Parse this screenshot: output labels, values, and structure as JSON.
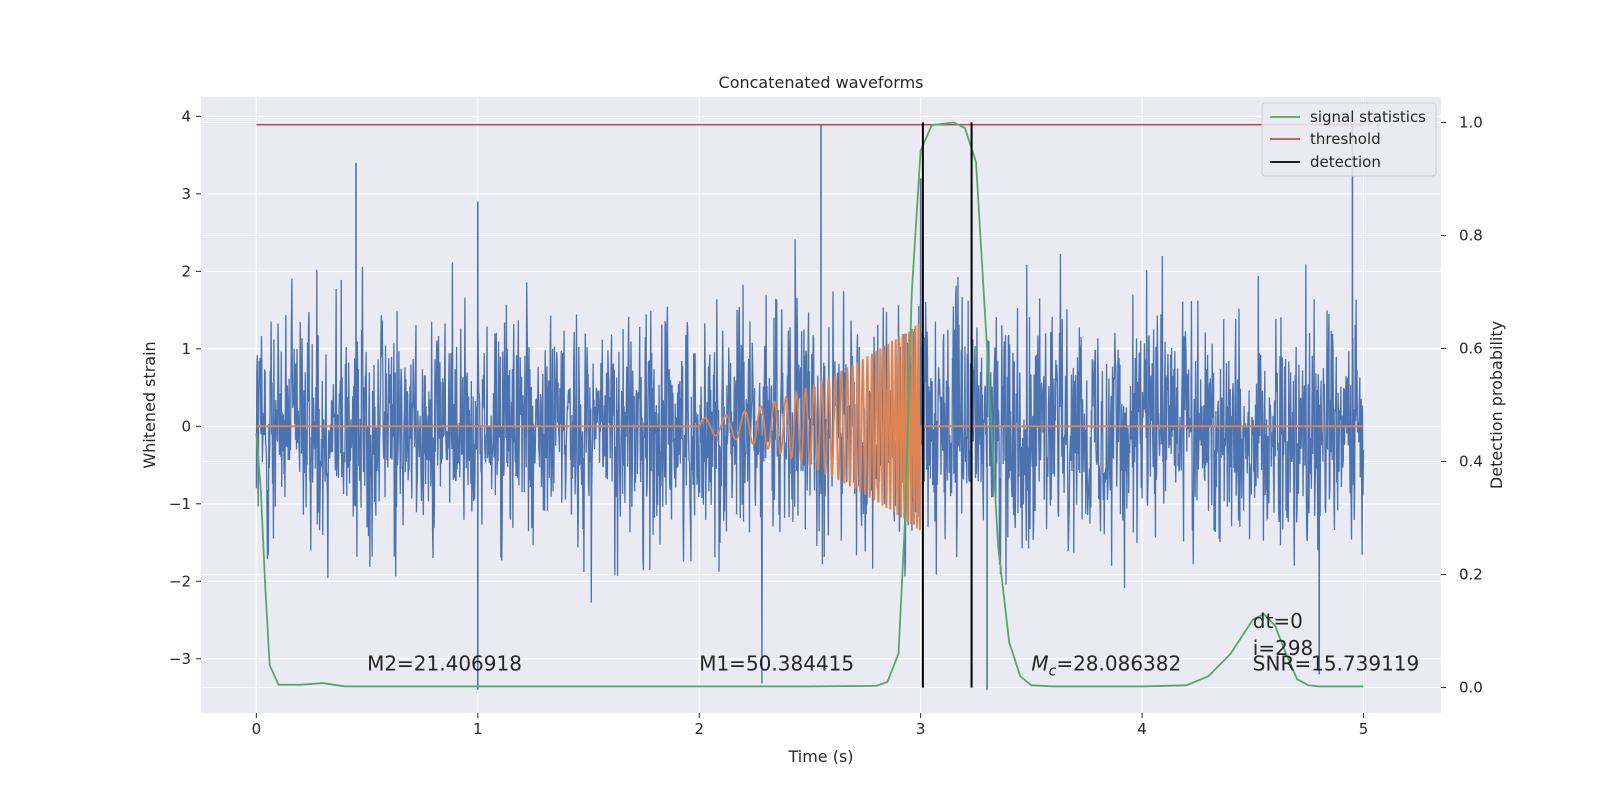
{
  "chart_data": {
    "type": "line",
    "title": "Concatenated waveforms",
    "xlabel": "Time (s)",
    "ylabel": "Whitened strain",
    "y2label": "Detection probability",
    "xlim": [
      -0.25,
      5.35
    ],
    "ylim": [
      -3.7,
      4.25
    ],
    "y2lim": [
      -0.045,
      1.045
    ],
    "xticks": [
      0,
      1,
      2,
      3,
      4,
      5
    ],
    "xtick_labels": [
      "0",
      "1",
      "2",
      "3",
      "4",
      "5"
    ],
    "yticks": [
      -3,
      -2,
      -1,
      0,
      1,
      2,
      3,
      4
    ],
    "ytick_labels": [
      "−3",
      "−2",
      "−1",
      "0",
      "1",
      "2",
      "3",
      "4"
    ],
    "y2ticks": [
      0.0,
      0.2,
      0.4,
      0.6,
      0.8,
      1.0
    ],
    "y2tick_labels": [
      "0.0",
      "0.2",
      "0.4",
      "0.6",
      "0.8",
      "1.0"
    ],
    "grid": true,
    "legend_placement": "top-right",
    "legend": [
      {
        "label": "signal statistics",
        "color": "#55a868"
      },
      {
        "label": "threshold",
        "color": "#c44e52"
      },
      {
        "label": "detection",
        "color": "#000000"
      }
    ],
    "colors": {
      "strain": "#4c72b0",
      "injection": "#dd8452",
      "signal_statistics": "#55a868",
      "threshold": "#c44e52",
      "detection": "#000000",
      "axes_bg": "#eaeaf2"
    },
    "strain": {
      "x_range": [
        0,
        5
      ],
      "typical_range": [
        -2.5,
        2.5
      ],
      "peaks": [
        {
          "x": 0.45,
          "y": 3.4
        },
        {
          "x": 1.0,
          "y": 2.9
        },
        {
          "x": 2.55,
          "y": 3.9
        },
        {
          "x": 3.0,
          "y": 3.2
        },
        {
          "x": 4.95,
          "y": 3.9
        },
        {
          "x": 1.0,
          "y": -3.4
        },
        {
          "x": 3.3,
          "y": -3.4
        },
        {
          "x": 4.8,
          "y": -3.2
        }
      ]
    },
    "injection": {
      "x_start": 2.0,
      "x_end": 3.0,
      "amplitude_start": 0.1,
      "amplitude_end": 1.35,
      "baseline": 0
    },
    "threshold": {
      "value": 0.996,
      "x_range": [
        0,
        5
      ]
    },
    "signal_statistics": {
      "x": [
        0,
        0.02,
        0.04,
        0.06,
        0.1,
        0.2,
        0.3,
        0.4,
        1.0,
        2.0,
        2.5,
        2.8,
        2.85,
        2.9,
        2.93,
        2.96,
        3.0,
        3.05,
        3.15,
        3.2,
        3.25,
        3.3,
        3.35,
        3.4,
        3.45,
        3.5,
        3.6,
        4.0,
        4.2,
        4.3,
        4.4,
        4.45,
        4.5,
        4.55,
        4.6,
        4.65,
        4.7,
        4.75,
        4.8,
        5.0
      ],
      "y": [
        0.45,
        0.35,
        0.18,
        0.04,
        0.005,
        0.005,
        0.008,
        0.002,
        0.002,
        0.002,
        0.002,
        0.003,
        0.01,
        0.06,
        0.3,
        0.7,
        0.95,
        0.995,
        1.0,
        0.99,
        0.93,
        0.6,
        0.25,
        0.08,
        0.02,
        0.004,
        0.002,
        0.002,
        0.004,
        0.02,
        0.06,
        0.09,
        0.12,
        0.13,
        0.11,
        0.06,
        0.015,
        0.004,
        0.002,
        0.002
      ]
    },
    "detections": [
      3.01,
      3.23
    ],
    "annotations": [
      {
        "text": "M2=21.406918",
        "x": 0.5,
        "y": -3.15
      },
      {
        "text": "M1=50.384415",
        "x": 2.0,
        "y": -3.15
      },
      {
        "text": "Mc=28.086382",
        "x": 3.5,
        "y": -3.15
      },
      {
        "text": "dt=0",
        "x": 4.5,
        "y": -2.6
      },
      {
        "text": "i=298",
        "x": 4.5,
        "y": -2.95
      },
      {
        "text": "SNR=15.739119",
        "x": 4.5,
        "y": -3.15
      }
    ]
  }
}
